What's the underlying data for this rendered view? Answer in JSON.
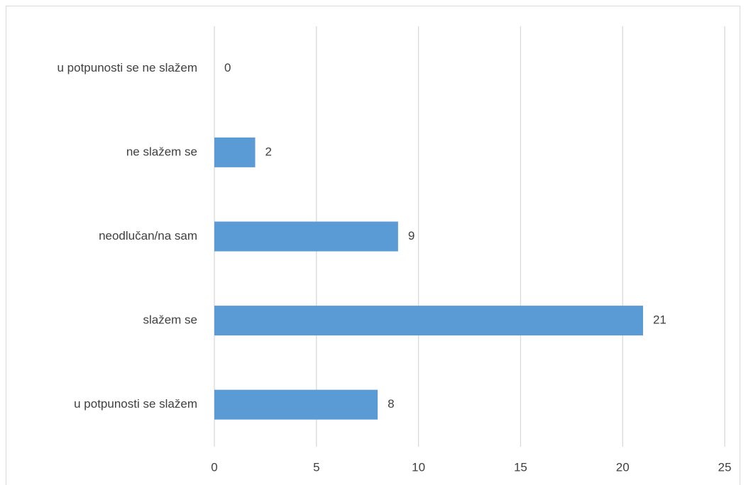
{
  "chart_data": {
    "type": "bar",
    "orientation": "horizontal",
    "categories": [
      "u potpunosti se ne slažem",
      "ne slažem se",
      "neodlučan/na sam",
      "slažem se",
      "u potpunosti se slažem"
    ],
    "values": [
      0,
      2,
      9,
      21,
      8
    ],
    "color": "#5b9bd5",
    "xlim": [
      0,
      25
    ],
    "xticks": [
      0,
      5,
      10,
      15,
      20,
      25
    ],
    "grid": true,
    "data_labels": true
  }
}
